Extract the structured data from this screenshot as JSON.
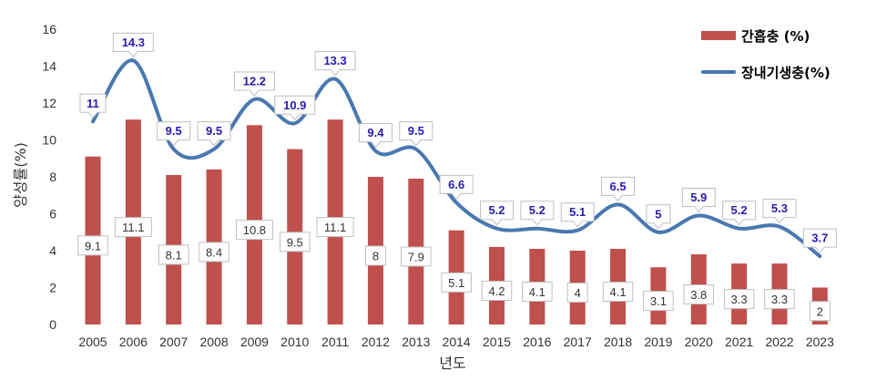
{
  "chart_data": {
    "type": "bar",
    "xlabel": "년도",
    "ylabel": "양성률(%)",
    "ylim": [
      0,
      16
    ],
    "yticks": [
      0,
      2,
      4,
      6,
      8,
      10,
      12,
      14,
      16
    ],
    "grid": false,
    "legend_position": "top-right",
    "categories": [
      "2005",
      "2006",
      "2007",
      "2008",
      "2009",
      "2010",
      "2011",
      "2012",
      "2013",
      "2014",
      "2015",
      "2016",
      "2017",
      "2018",
      "2019",
      "2020",
      "2021",
      "2022",
      "2023"
    ],
    "series": [
      {
        "name": "간흡충 (%)",
        "type": "bar",
        "color": "#c0504d",
        "values": [
          9.1,
          11.1,
          8.1,
          8.4,
          10.8,
          9.5,
          11.1,
          8,
          7.9,
          5.1,
          4.2,
          4.1,
          4,
          4.1,
          3.1,
          3.8,
          3.3,
          3.3,
          2
        ]
      },
      {
        "name": "장내기생충(%)",
        "type": "line",
        "color": "#4a78b0",
        "values": [
          11,
          14.3,
          9.5,
          9.5,
          12.2,
          10.9,
          13.3,
          9.4,
          9.5,
          6.6,
          5.2,
          5.2,
          5.1,
          6.5,
          5,
          5.9,
          5.2,
          5.3,
          3.7
        ]
      }
    ],
    "bar_labels": [
      "9.1",
      "11.1",
      "8.1",
      "8.4",
      "10.8",
      "9.5",
      "11.1",
      "8",
      "7.9",
      "5.1",
      "4.2",
      "4.1",
      "4",
      "4.1",
      "3.1",
      "3.8",
      "3.3",
      "3.3",
      "2"
    ],
    "line_labels": [
      "11",
      "14.3",
      "9.5",
      "9.5",
      "12.2",
      "10.9",
      "13.3",
      "9.4",
      "9.5",
      "6.6",
      "5.2",
      "5.2",
      "5.1",
      "6.5",
      "5",
      "5.9",
      "5.2",
      "5.3",
      "3.7"
    ]
  }
}
